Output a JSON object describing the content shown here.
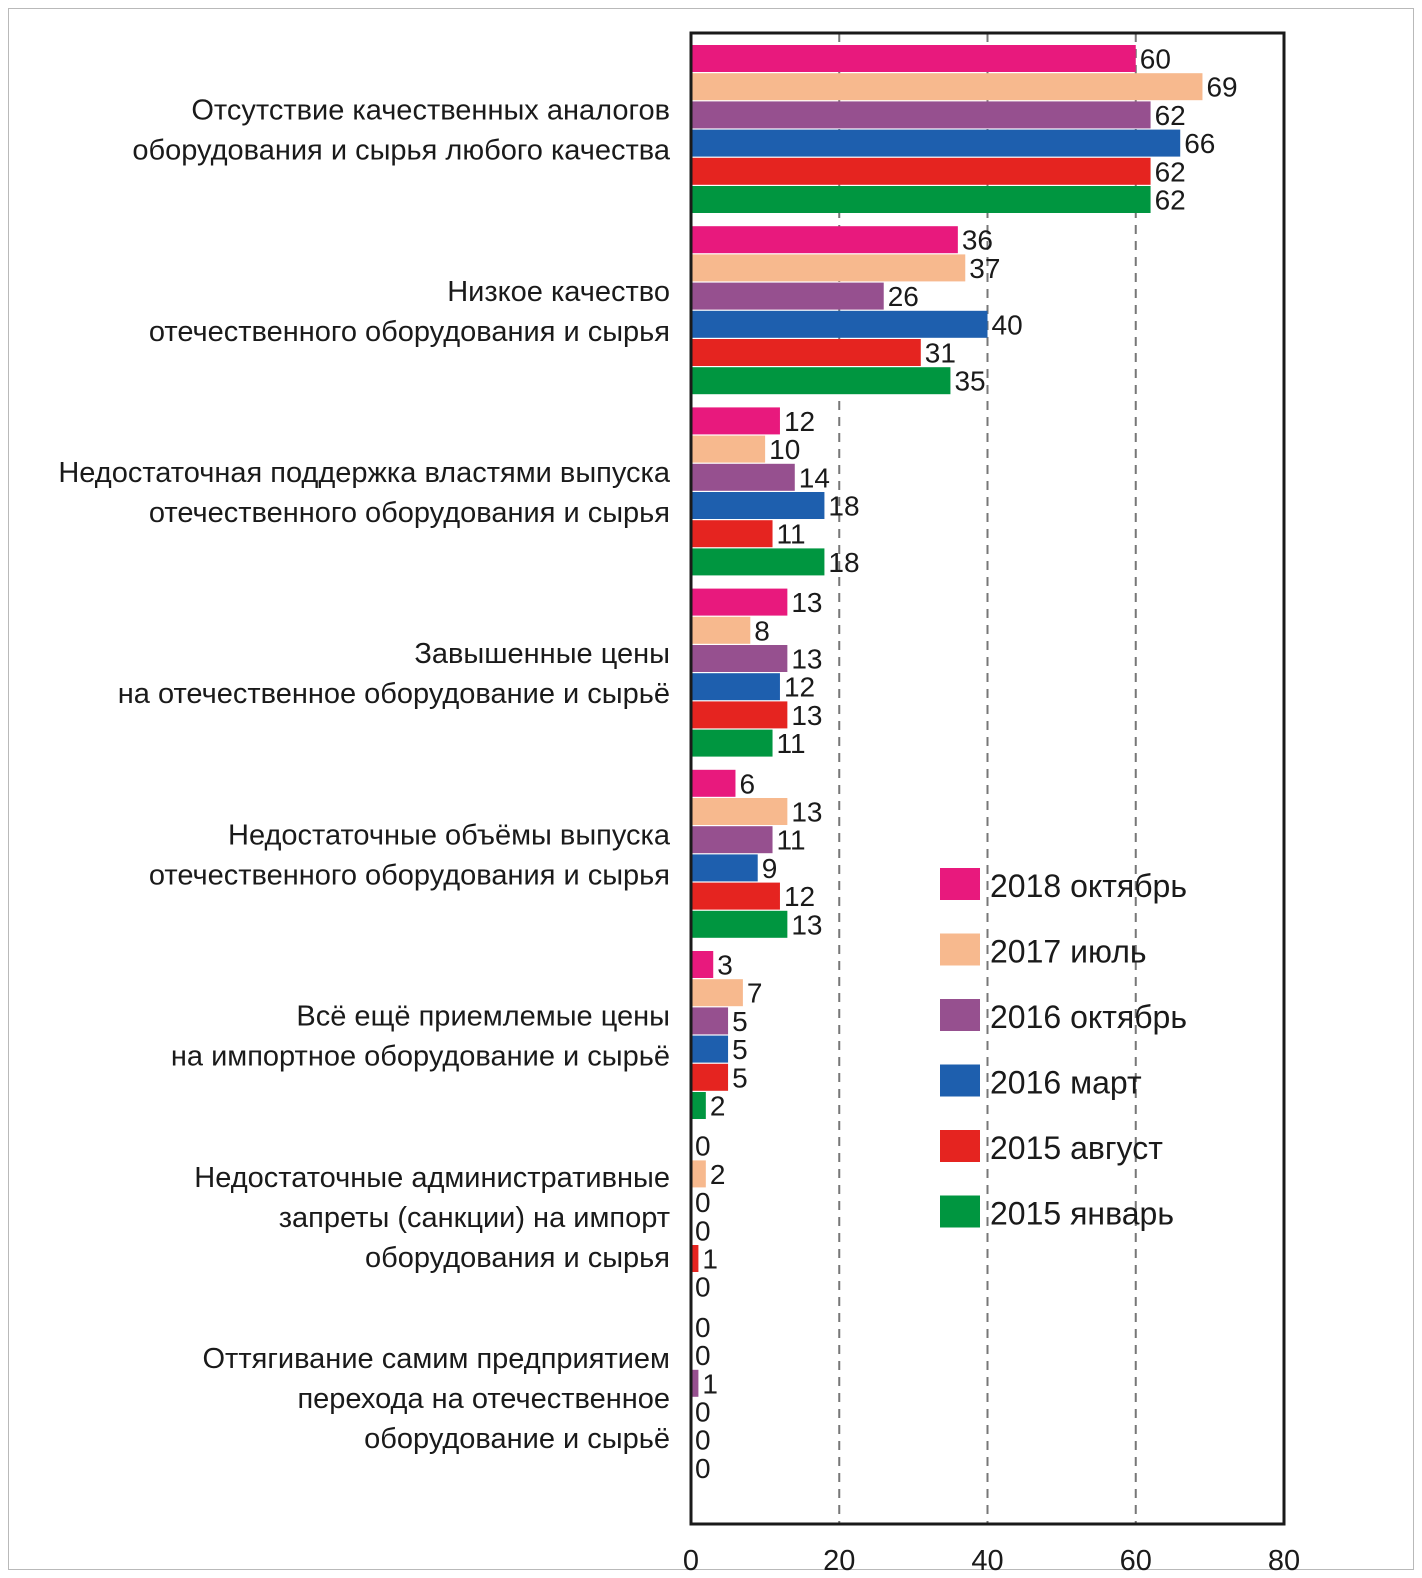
{
  "chart_data": {
    "type": "bar",
    "orientation": "horizontal",
    "title": "",
    "xlabel": "",
    "ylabel": "",
    "xlim": [
      0,
      80
    ],
    "x_ticks": [
      "0",
      "20",
      "40",
      "60",
      "80"
    ],
    "grid": "vertical dashed at 20, 40, 60",
    "legend_position": "right, lower-middle",
    "categories": [
      [
        "Отсутствие качественных аналогов",
        "оборудования и сырья любого качества"
      ],
      [
        "Низкое качество",
        "отечественного оборудования и сырья"
      ],
      [
        "Недостаточная поддержка властями выпуска",
        "отечественного оборудования и сырья"
      ],
      [
        "Завышенные цены",
        "на отечественное оборудование и сырьё"
      ],
      [
        "Недостаточные объёмы выпуска",
        "отечественного оборудования и сырья"
      ],
      [
        "Всё ещё приемлемые цены",
        "на импортное оборудование и сырьё"
      ],
      [
        "Недостаточные административные",
        "запреты (санкции) на импорт",
        "оборудования и сырья"
      ],
      [
        "Оттягивание самим предприятием",
        "перехода на отечественное",
        "оборудование и сырьё"
      ]
    ],
    "series": [
      {
        "name": "2018 октябрь",
        "color": "#e8197d",
        "values": [
          60,
          36,
          12,
          13,
          6,
          3,
          0,
          0
        ]
      },
      {
        "name": "2017 июль",
        "color": "#f7b98e",
        "values": [
          69,
          37,
          10,
          8,
          13,
          7,
          2,
          0
        ]
      },
      {
        "name": "2016 октябрь",
        "color": "#96508f",
        "values": [
          62,
          26,
          14,
          13,
          11,
          5,
          0,
          1
        ]
      },
      {
        "name": "2016 март",
        "color": "#1e5fae",
        "values": [
          66,
          40,
          18,
          12,
          9,
          5,
          0,
          0
        ]
      },
      {
        "name": "2015 август",
        "color": "#e52420",
        "values": [
          62,
          31,
          11,
          13,
          12,
          5,
          1,
          0
        ]
      },
      {
        "name": "2015 январь",
        "color": "#009640",
        "values": [
          62,
          35,
          18,
          11,
          13,
          2,
          0,
          0
        ]
      }
    ]
  }
}
